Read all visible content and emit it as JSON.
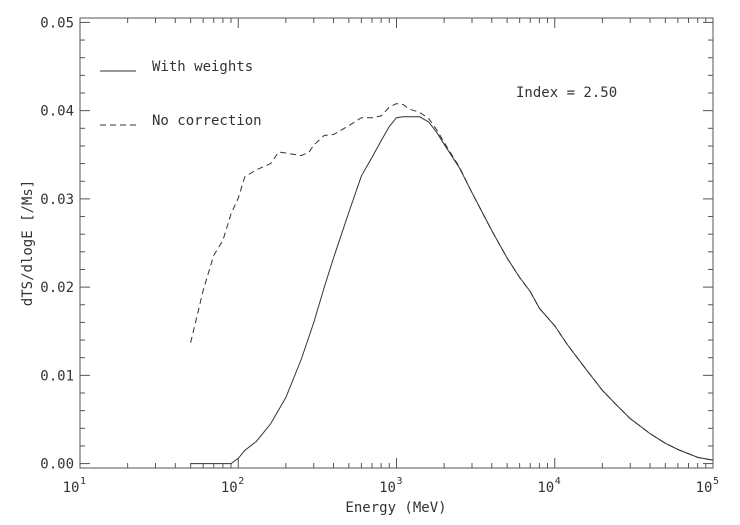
{
  "chart_data": {
    "type": "line",
    "title": "",
    "xlabel": "Energy (MeV)",
    "ylabel": "dTS/dlogE [/Ms]",
    "xscale": "log",
    "xlim": [
      10,
      100000
    ],
    "ylim": [
      -0.0005,
      0.0505
    ],
    "x_ticks": [
      {
        "base": "10",
        "exp": "1"
      },
      {
        "base": "10",
        "exp": "2"
      },
      {
        "base": "10",
        "exp": "3"
      },
      {
        "base": "10",
        "exp": "4"
      },
      {
        "base": "10",
        "exp": "5"
      }
    ],
    "y_ticks": [
      {
        "value": 0.0,
        "label": "0.00"
      },
      {
        "value": 0.01,
        "label": "0.01"
      },
      {
        "value": 0.02,
        "label": "0.02"
      },
      {
        "value": 0.03,
        "label": "0.03"
      },
      {
        "value": 0.04,
        "label": "0.04"
      },
      {
        "value": 0.05,
        "label": "0.05"
      }
    ],
    "annotation": "Index = 2.50",
    "legend_position": "top-left",
    "series": [
      {
        "name": "With weights",
        "style": "solid",
        "x": [
          50,
          90,
          100,
          110,
          130,
          160,
          200,
          250,
          300,
          350,
          400,
          500,
          600,
          700,
          800,
          900,
          1000,
          1100,
          1200,
          1400,
          1600,
          1800,
          2000,
          2500,
          3000,
          3500,
          4000,
          5000,
          6000,
          7000,
          8000,
          10000,
          12000,
          15000,
          20000,
          25000,
          30000,
          40000,
          50000,
          60000,
          80000,
          100000
        ],
        "y": [
          0.0,
          0.0,
          0.0006,
          0.0015,
          0.0025,
          0.0045,
          0.0075,
          0.0118,
          0.016,
          0.02,
          0.0233,
          0.0285,
          0.0326,
          0.0347,
          0.0366,
          0.0382,
          0.0392,
          0.0393,
          0.0393,
          0.0393,
          0.0387,
          0.0375,
          0.0362,
          0.0335,
          0.0307,
          0.0284,
          0.0264,
          0.0233,
          0.0211,
          0.0195,
          0.0176,
          0.0156,
          0.0135,
          0.0112,
          0.0083,
          0.0065,
          0.0051,
          0.0034,
          0.0023,
          0.0016,
          0.0007,
          0.0004
        ]
      },
      {
        "name": "No correction",
        "style": "dashed",
        "x": [
          50,
          55,
          60,
          70,
          80,
          90,
          100,
          110,
          130,
          160,
          180,
          200,
          250,
          280,
          300,
          350,
          400,
          500,
          600,
          700,
          800,
          900,
          1000,
          1100,
          1200,
          1400,
          1600,
          1800,
          2000,
          2500,
          3000,
          3500,
          4000,
          5000,
          6000,
          7000,
          8000,
          10000,
          12000,
          15000,
          20000,
          25000,
          30000,
          40000,
          50000,
          60000,
          80000,
          100000
        ],
        "y": [
          0.0137,
          0.0168,
          0.0196,
          0.0236,
          0.0253,
          0.0283,
          0.0301,
          0.0325,
          0.0333,
          0.034,
          0.0353,
          0.0352,
          0.0349,
          0.0353,
          0.0361,
          0.0372,
          0.0373,
          0.0383,
          0.0392,
          0.0392,
          0.0394,
          0.0404,
          0.0408,
          0.0407,
          0.0402,
          0.0398,
          0.0391,
          0.0378,
          0.0364,
          0.0336,
          0.0307,
          0.0284,
          0.0264,
          0.0233,
          0.0211,
          0.0195,
          0.0176,
          0.0156,
          0.0135,
          0.0112,
          0.0083,
          0.0065,
          0.0051,
          0.0034,
          0.0023,
          0.0016,
          0.0007,
          0.0004
        ]
      }
    ]
  }
}
